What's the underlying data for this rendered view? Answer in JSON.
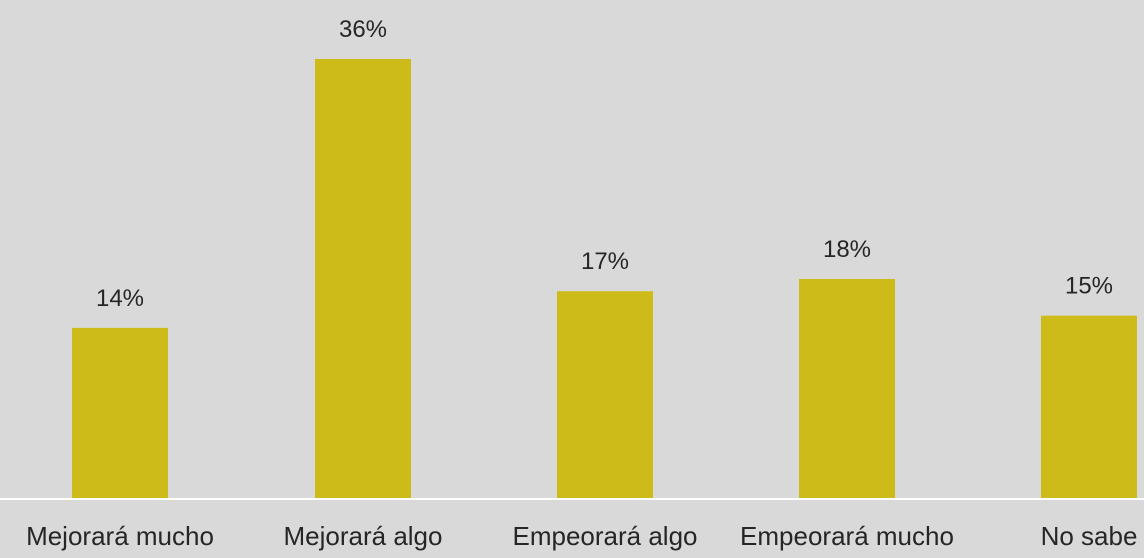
{
  "chart_data": {
    "type": "bar",
    "categories": [
      "Mejorará mucho",
      "Mejorará algo",
      "Empeorará algo",
      "Empeorará mucho",
      "No sabe"
    ],
    "values": [
      14,
      36,
      17,
      18,
      15
    ],
    "data_labels": [
      "14%",
      "36%",
      "17%",
      "18%",
      "15%"
    ],
    "title": "",
    "xlabel": "",
    "ylabel": "",
    "ylim": [
      0,
      36
    ],
    "grid": false,
    "legend": "none",
    "colors": {
      "bar": "#cdbb1a",
      "background": "#d9d9d9",
      "axis": "#ffffff",
      "text": "#262626"
    }
  }
}
